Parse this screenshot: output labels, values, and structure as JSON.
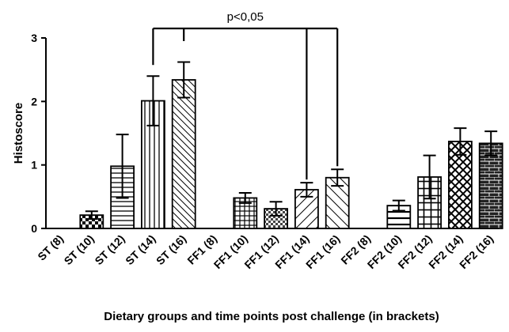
{
  "chart_data": {
    "type": "bar",
    "title": "",
    "xlabel": "Dietary groups and time points post challenge (in brackets)",
    "ylabel": "Histoscore",
    "ylim": [
      0,
      3
    ],
    "yticks": [
      "0",
      "1",
      "2",
      "3"
    ],
    "grid": false,
    "categories": [
      "ST (8)",
      "ST (10)",
      "ST (12)",
      "ST (14)",
      "ST (16)",
      "FF1 (8)",
      "FF1 (10)",
      "FF1 (12)",
      "FF1 (14)",
      "FF1 (16)",
      "FF2 (8)",
      "FF2 (10)",
      "FF2 (12)",
      "FF2 (14)",
      "FF2 (16)"
    ],
    "values": [
      0,
      0.21,
      0.98,
      2.01,
      2.34,
      0,
      0.48,
      0.31,
      0.61,
      0.8,
      0,
      0.36,
      0.81,
      1.37,
      1.34
    ],
    "errors": [
      0,
      0.06,
      0.5,
      0.39,
      0.28,
      0,
      0.08,
      0.11,
      0.11,
      0.13,
      0,
      0.08,
      0.34,
      0.21,
      0.19
    ],
    "patterns": [
      "none",
      "checker",
      "hlines",
      "vlines",
      "diag-right",
      "none",
      "grid",
      "checker-small",
      "diag-left",
      "diag-right-wide",
      "none",
      "hlines-wide",
      "grid-wide",
      "crosshatch",
      "brick"
    ],
    "annotation": {
      "text": "p<0,05",
      "from": [
        "ST (14)",
        "ST (16)"
      ],
      "to": [
        "FF1 (14)",
        "FF1 (16)"
      ]
    }
  }
}
